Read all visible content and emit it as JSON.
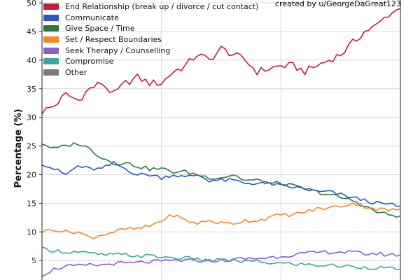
{
  "credit": "created by u/GeorgeDaGreat123",
  "chart_data": {
    "type": "line",
    "ylabel": "Percentage (%)",
    "xlabel": "",
    "ylim": [
      1.6,
      50.5
    ],
    "xlim": [
      0,
      180
    ],
    "yticks": [
      5,
      10,
      15,
      20,
      25,
      30,
      35,
      40,
      45,
      50
    ],
    "grid": true,
    "legend_placement": "top-left",
    "series": [
      {
        "name": "End Relationship (break up / divorce / cut contact)",
        "color": "#c0203a",
        "x": [
          0,
          6,
          12,
          18,
          24,
          30,
          36,
          42,
          48,
          54,
          60,
          66,
          72,
          78,
          84,
          90,
          96,
          102,
          108,
          114,
          120,
          126,
          132,
          138,
          144,
          150,
          156,
          162,
          168,
          174,
          180
        ],
        "values": [
          31,
          32,
          34,
          33,
          35,
          36,
          34,
          36,
          37,
          36,
          36,
          38,
          39,
          41,
          40,
          42,
          41,
          40,
          38,
          38.5,
          39,
          39,
          38,
          39,
          40,
          41,
          43,
          45,
          46,
          48,
          49
        ]
      },
      {
        "name": "Communicate",
        "color": "#2f56c8",
        "x": [
          0,
          6,
          12,
          18,
          24,
          30,
          36,
          42,
          48,
          54,
          60,
          66,
          72,
          78,
          84,
          90,
          96,
          102,
          108,
          114,
          120,
          126,
          132,
          138,
          144,
          150,
          156,
          162,
          168,
          174,
          180
        ],
        "values": [
          22,
          21,
          20,
          21.5,
          21,
          21,
          22,
          21,
          20,
          20,
          19.5,
          20,
          19.5,
          20,
          19,
          19,
          19,
          18.5,
          18.5,
          18.5,
          18,
          17.8,
          17.5,
          17,
          17,
          16.5,
          16,
          15.5,
          15,
          14.8,
          14.5
        ]
      },
      {
        "name": "Give Space / Time",
        "color": "#2e7a42",
        "x": [
          0,
          6,
          12,
          18,
          24,
          30,
          36,
          42,
          48,
          54,
          60,
          66,
          72,
          78,
          84,
          90,
          96,
          102,
          108,
          114,
          120,
          126,
          132,
          138,
          144,
          150,
          156,
          162,
          168,
          174,
          180
        ],
        "values": [
          25.5,
          24.5,
          25,
          25.5,
          24.5,
          23,
          22,
          22,
          21.5,
          21,
          21,
          20.5,
          20.5,
          20,
          19.5,
          19.5,
          20,
          19,
          19,
          18.5,
          18.5,
          18,
          17.5,
          17,
          16.5,
          16,
          15.5,
          14.5,
          13.5,
          13,
          12.8
        ]
      },
      {
        "name": "Set / Respect Boundaries",
        "color": "#ef8a2a",
        "x": [
          0,
          6,
          12,
          18,
          24,
          30,
          36,
          42,
          48,
          54,
          60,
          66,
          72,
          78,
          84,
          90,
          96,
          102,
          108,
          114,
          120,
          126,
          132,
          138,
          144,
          150,
          156,
          162,
          168,
          174,
          180
        ],
        "values": [
          10,
          10.5,
          10,
          10,
          9,
          9.5,
          10,
          10.5,
          10.5,
          11,
          12,
          13,
          12,
          11.5,
          12,
          11.5,
          11.5,
          12,
          12,
          12.5,
          13,
          13,
          13.5,
          14,
          14.2,
          14.5,
          15,
          14.5,
          14,
          13.8,
          14
        ]
      },
      {
        "name": "Seek Therapy / Counselling",
        "color": "#8a5fd0",
        "x": [
          0,
          6,
          12,
          18,
          24,
          30,
          36,
          42,
          48,
          54,
          60,
          66,
          72,
          78,
          84,
          90,
          96,
          102,
          108,
          114,
          120,
          126,
          132,
          138,
          144,
          150,
          156,
          162,
          168,
          174,
          180
        ],
        "values": [
          2.5,
          3.5,
          4,
          4,
          4.2,
          4.2,
          4.5,
          4.5,
          4.6,
          4.8,
          4.8,
          5,
          5,
          5,
          5,
          5,
          5.2,
          5.3,
          5.4,
          5.5,
          5.8,
          6,
          6.2,
          6.4,
          6.5,
          6.5,
          6.4,
          6.2,
          6.2,
          6,
          6
        ]
      },
      {
        "name": "Compromise",
        "color": "#3aa8a0",
        "x": [
          0,
          6,
          12,
          18,
          24,
          30,
          36,
          42,
          48,
          54,
          60,
          66,
          72,
          78,
          84,
          90,
          96,
          102,
          108,
          114,
          120,
          126,
          132,
          138,
          144,
          150,
          156,
          162,
          168,
          174,
          180
        ],
        "values": [
          7,
          6.8,
          6.5,
          6.5,
          6.2,
          6,
          6,
          6,
          5.8,
          5.8,
          5.6,
          5.5,
          5.4,
          5.2,
          5,
          5,
          5,
          4.8,
          4.8,
          4.6,
          4.5,
          4.4,
          4.3,
          4.2,
          4.2,
          4,
          4,
          3.8,
          3.8,
          3.6,
          3.5
        ]
      },
      {
        "name": "Other",
        "color": "#7a7a7a",
        "x": [],
        "values": []
      }
    ]
  }
}
